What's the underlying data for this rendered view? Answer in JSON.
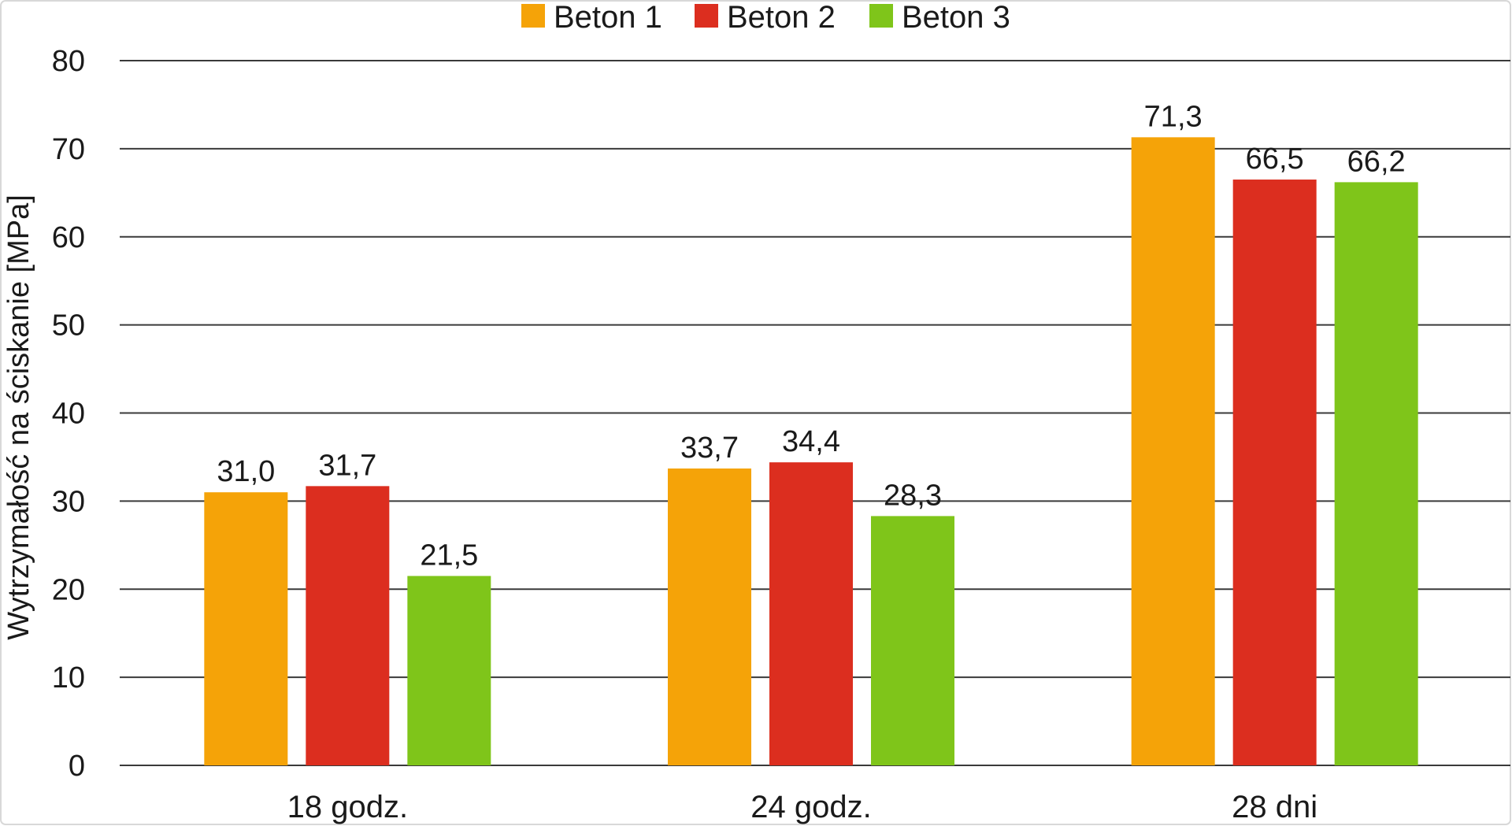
{
  "chart_data": {
    "type": "bar",
    "title": "",
    "xlabel": "",
    "ylabel": "Wytrzymałość na ściskanie [MPa]",
    "ylim": [
      0,
      80
    ],
    "yticks": [
      0,
      10,
      20,
      30,
      40,
      50,
      60,
      70,
      80
    ],
    "grid": true,
    "legend_position": "top-center",
    "categories": [
      "18 godz.",
      "24 godz.",
      "28 dni"
    ],
    "series": [
      {
        "name": "Beton 1",
        "color": "#F5A308",
        "values": [
          31.0,
          33.7,
          71.3
        ],
        "labels": [
          "31,0",
          "33,7",
          "71,3"
        ]
      },
      {
        "name": "Beton 2",
        "color": "#DC2E1F",
        "values": [
          31.7,
          34.4,
          66.5
        ],
        "labels": [
          "31,7",
          "34,4",
          "66,5"
        ]
      },
      {
        "name": "Beton 3",
        "color": "#7FC51A",
        "values": [
          21.5,
          28.3,
          66.2
        ],
        "labels": [
          "21,5",
          "28,3",
          "66,2"
        ]
      }
    ]
  }
}
